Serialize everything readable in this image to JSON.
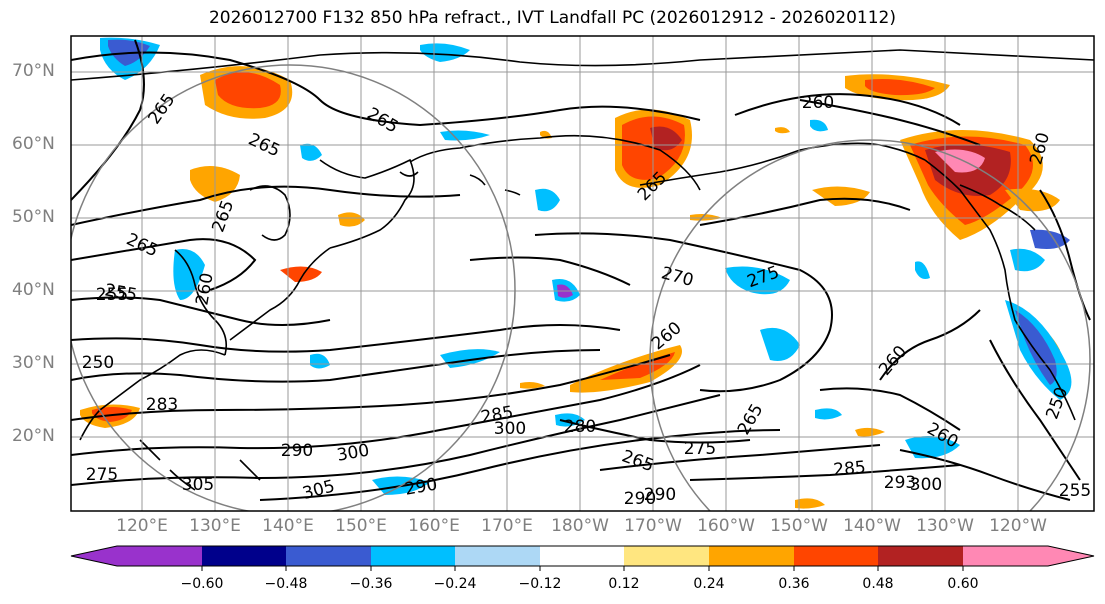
{
  "title": "2026012700 F132 850 hPa refract., IVT Landfall PC (2026012912 - 2026020112)",
  "latitude_labels": [
    "70°N",
    "60°N",
    "50°N",
    "40°N",
    "30°N",
    "20°N"
  ],
  "longitude_labels": [
    "120°E",
    "130°E",
    "140°E",
    "150°E",
    "160°E",
    "170°E",
    "180°W",
    "170°W",
    "160°W",
    "150°W",
    "140°W",
    "130°W",
    "120°W"
  ],
  "colorbar": {
    "tick_labels": [
      "−0.60",
      "−0.48",
      "−0.36",
      "−0.24",
      "−0.12",
      "0.12",
      "0.24",
      "0.36",
      "0.48",
      "0.60"
    ],
    "colors": [
      "#9932cc",
      "#00008b",
      "#3a5bd1",
      "#00bfff",
      "#add8f5",
      "#ffffff",
      "#ffe680",
      "#ffa500",
      "#ff4500",
      "#b22222",
      "#ff88b4"
    ]
  },
  "contour_labels": [
    "265",
    "265",
    "265",
    "265",
    "265",
    "255",
    "260",
    "255",
    "250",
    "283",
    "275",
    "305",
    "290",
    "300",
    "305",
    "290",
    "285",
    "300",
    "280",
    "265",
    "275",
    "290",
    "290",
    "265",
    "270",
    "275",
    "260",
    "285",
    "293",
    "300",
    "260",
    "250",
    "255",
    "260",
    "260",
    "260",
    "265"
  ]
}
